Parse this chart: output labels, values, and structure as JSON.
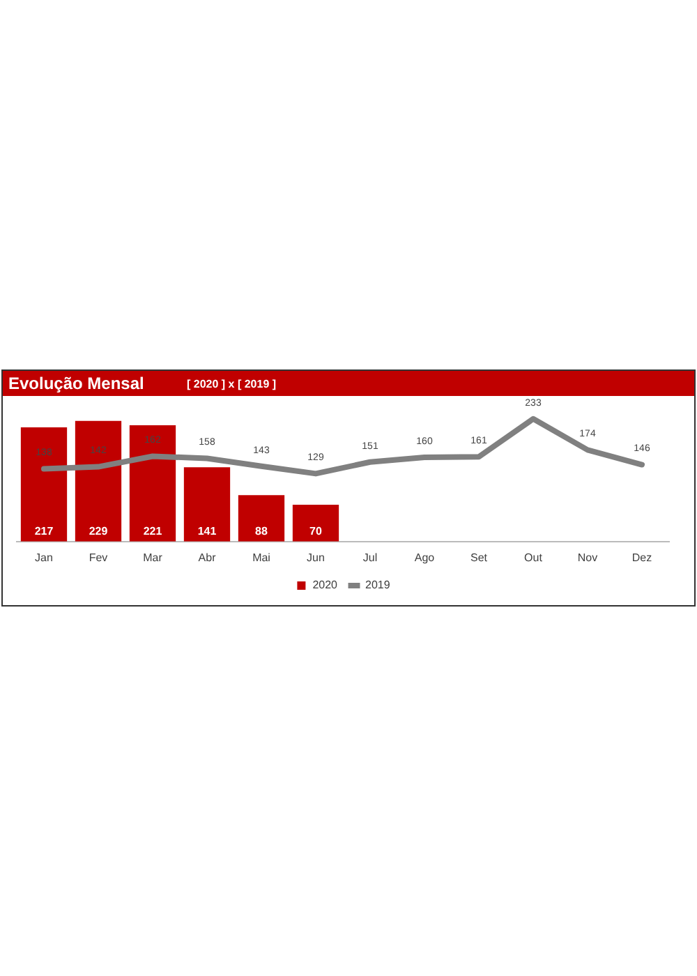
{
  "chart_data": {
    "type": "bar",
    "title": "Evolução Mensal",
    "subtitle": "[ 2020 ] x [ 2019 ]",
    "categories": [
      "Jan",
      "Fev",
      "Mar",
      "Abr",
      "Mai",
      "Jun",
      "Jul",
      "Ago",
      "Set",
      "Out",
      "Nov",
      "Dez"
    ],
    "series": [
      {
        "name": "2020",
        "color": "#c00000",
        "values": [
          217,
          229,
          221,
          141,
          88,
          70,
          null,
          null,
          null,
          null,
          null,
          null
        ]
      },
      {
        "name": "2019",
        "type": "line",
        "color": "#808080",
        "values": [
          138,
          142,
          162,
          158,
          143,
          129,
          151,
          160,
          161,
          233,
          174,
          146
        ]
      }
    ],
    "data_labels": true,
    "legend": "bottom",
    "grid": false,
    "marker": "none",
    "line_style": "solid",
    "tick_labels": "x"
  }
}
